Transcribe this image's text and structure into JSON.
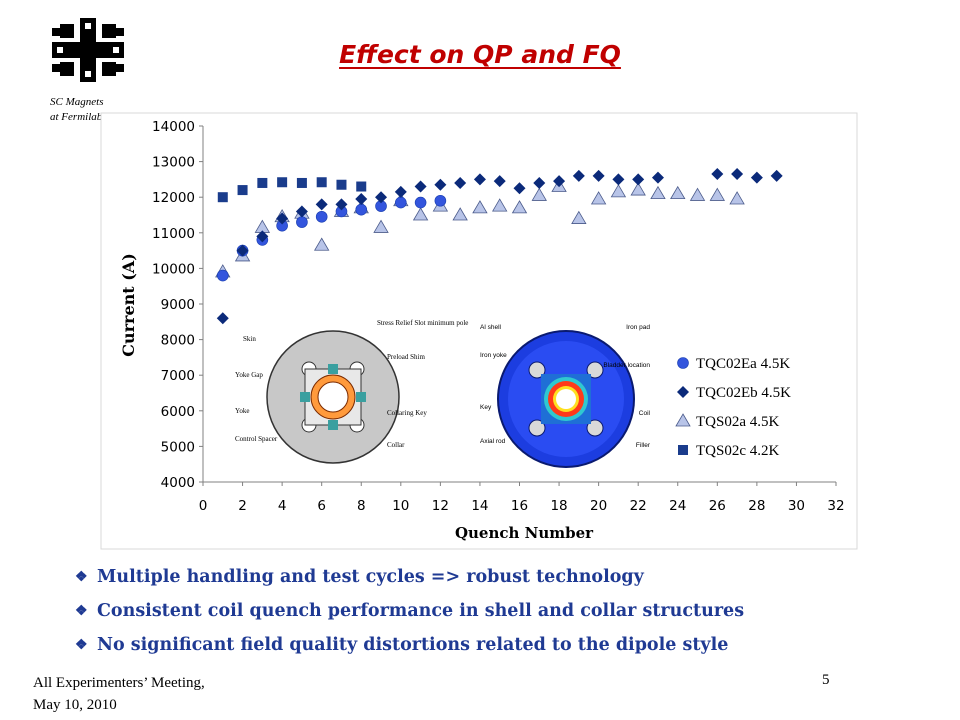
{
  "header": {
    "title": "Effect on QP and FQ",
    "logo_caption_line1": "SC Magnets",
    "logo_caption_line2": "at Fermilab",
    "logo_icon": "fermilab-logo-icon"
  },
  "chart_data": {
    "type": "scatter",
    "title": "",
    "xlabel": "Quench Number",
    "ylabel": "Current (A)",
    "xlim": [
      0,
      32
    ],
    "ylim": [
      4000,
      14000
    ],
    "xticks": [
      0,
      2,
      4,
      6,
      8,
      10,
      12,
      14,
      16,
      18,
      20,
      22,
      24,
      26,
      28,
      30,
      32
    ],
    "yticks": [
      4000,
      5000,
      6000,
      7000,
      8000,
      9000,
      10000,
      11000,
      12000,
      13000,
      14000
    ],
    "grid": false,
    "legend_position": "bottom-right",
    "series": [
      {
        "name": "TQC02Ea 4.5K",
        "marker": "circle",
        "color": "#3355dd",
        "x": [
          1,
          2,
          3,
          4,
          5,
          6,
          7,
          8,
          9,
          10,
          11,
          12
        ],
        "y": [
          9800,
          10500,
          10800,
          11200,
          11300,
          11450,
          11600,
          11650,
          11750,
          11850,
          11850,
          11900
        ]
      },
      {
        "name": "TQC02Eb 4.5K",
        "marker": "diamond",
        "color": "#0b2a7a",
        "x": [
          1,
          2,
          3,
          4,
          5,
          6,
          7,
          8,
          9,
          10,
          11,
          12,
          13,
          14,
          15,
          16,
          17,
          18,
          19,
          20,
          21,
          22,
          23,
          26,
          27,
          28,
          29
        ],
        "y": [
          8600,
          10500,
          10900,
          11400,
          11600,
          11800,
          11800,
          11950,
          12000,
          12150,
          12300,
          12350,
          12400,
          12500,
          12450,
          12250,
          12400,
          12450,
          12600,
          12600,
          12500,
          12500,
          12550,
          12650,
          12650,
          12550,
          12600
        ]
      },
      {
        "name": "TQS02a 4.5K",
        "marker": "triangle",
        "color": "#b8c4e8",
        "x": [
          1,
          2,
          3,
          4,
          5,
          6,
          7,
          8,
          9,
          10,
          11,
          12,
          13,
          14,
          15,
          16,
          17,
          18,
          19,
          20,
          21,
          22,
          23,
          24,
          25,
          26,
          27
        ],
        "y": [
          9900,
          10350,
          11150,
          11450,
          11550,
          10650,
          11600,
          11700,
          11150,
          11900,
          11500,
          11750,
          11500,
          11700,
          11750,
          11700,
          12050,
          12300,
          11400,
          11950,
          12150,
          12200,
          12100,
          12100,
          12050,
          12050,
          11950
        ]
      },
      {
        "name": "TQS02c 4.2K",
        "marker": "square",
        "color": "#1a3c8c",
        "x": [
          1,
          2,
          3,
          4,
          5,
          6,
          7,
          8
        ],
        "y": [
          12000,
          12200,
          12400,
          12420,
          12400,
          12420,
          12350,
          12300
        ]
      }
    ]
  },
  "inset_left": {
    "labels": [
      "Skin",
      "Yoke Gap",
      "Yoke",
      "Control Spacer",
      "Stress Relief Slot minimum pole",
      "Preload Shim",
      "Collaring Key",
      "Collar"
    ]
  },
  "inset_right": {
    "labels": [
      "Al shell",
      "Iron yoke",
      "Key",
      "Axial rod",
      "Iron pad",
      "Bladder location",
      "Coil",
      "Filler"
    ]
  },
  "bullets": [
    "Multiple handling and test cycles => robust technology",
    "Consistent coil quench performance in shell and collar structures",
    "No significant field quality distortions related to the dipole style"
  ],
  "bullet_icon": "diamond-clover-icon",
  "footer": {
    "line1": "All Experimenters’ Meeting,",
    "line2": "May 10, 2010",
    "page_number": "5"
  }
}
